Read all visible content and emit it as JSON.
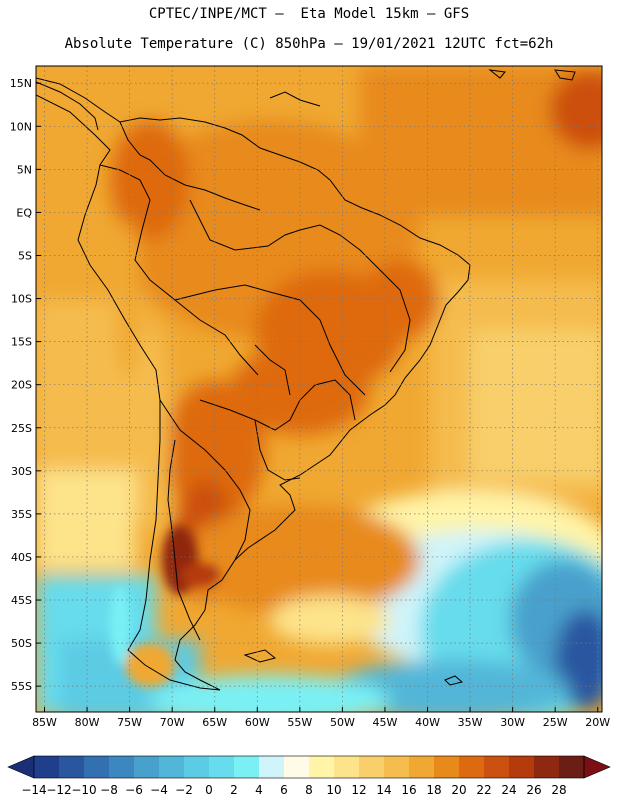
{
  "header": {
    "line1": "CPTEC/INPE/MCT –  Eta Model 15km – GFS",
    "line2": "Absolute Temperature (C) 850hPa – 19/01/2021 12UTC fct=62h"
  },
  "map": {
    "lon_range": [
      -86,
      -19.5
    ],
    "lat_range": [
      -58,
      17
    ],
    "lat_ticks": [
      "15N",
      "10N",
      "5N",
      "EQ",
      "5S",
      "10S",
      "15S",
      "20S",
      "25S",
      "30S",
      "35S",
      "40S",
      "45S",
      "50S",
      "55S"
    ],
    "lat_values": [
      15,
      10,
      5,
      0,
      -5,
      -10,
      -15,
      -20,
      -25,
      -30,
      -35,
      -40,
      -45,
      -50,
      -55
    ],
    "lon_ticks": [
      "85W",
      "80W",
      "75W",
      "70W",
      "65W",
      "60W",
      "55W",
      "50W",
      "45W",
      "40W",
      "35W",
      "30W",
      "25W",
      "20W"
    ],
    "lon_values": [
      -85,
      -80,
      -75,
      -70,
      -65,
      -60,
      -55,
      -50,
      -45,
      -40,
      -35,
      -30,
      -25,
      -20
    ]
  },
  "colorbar": {
    "labels": [
      "-14",
      "-12",
      "-10",
      "-8",
      "-6",
      "-4",
      "-2",
      "0",
      "2",
      "4",
      "6",
      "8",
      "10",
      "12",
      "14",
      "16",
      "18",
      "20",
      "22",
      "24",
      "26",
      "28"
    ],
    "colors": [
      "#1f3e8c",
      "#2a56a0",
      "#3370b2",
      "#3d87c0",
      "#48a0cc",
      "#52b6d8",
      "#5ccbe4",
      "#66dcec",
      "#7af0f4",
      "#cff4fa",
      "#fffbe6",
      "#fff4a8",
      "#fde38a",
      "#f8cf6a",
      "#f5bc4e",
      "#f0a832",
      "#e88a1a",
      "#de6a10",
      "#cc5010",
      "#b53a0c",
      "#8f2810",
      "#6b1e14"
    ],
    "under_color": "#1a2f78",
    "over_color": "#7a1014"
  }
}
